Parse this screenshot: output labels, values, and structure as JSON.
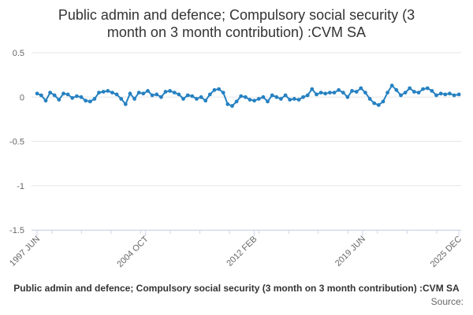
{
  "chart_data": {
    "type": "line",
    "title_lines": [
      "Public admin and defence; Compulsory social security (3",
      "month on 3 month contribution) :CVM SA"
    ],
    "xlabel": "",
    "ylabel": "",
    "x_start": "1997 JUN",
    "x_end": "2025 DEC",
    "x_ticks": [
      "1997 JUN",
      "2004 OCT",
      "2012 FEB",
      "2019 JUN",
      "2025 DEC"
    ],
    "y_ticks": [
      "0.5",
      "0",
      "-0.5",
      "-1",
      "-1.5"
    ],
    "ylim": [
      -1.5,
      0.5
    ],
    "grid": true,
    "legend": "none",
    "series": [
      {
        "name": "Public admin and defence; Compulsory social security (3 month on 3 month contribution) :CVM SA",
        "color": "#2681c2",
        "x_years": [
          1997.42,
          1997.7,
          1998.0,
          1998.3,
          1998.6,
          1998.9,
          1999.2,
          1999.5,
          1999.8,
          2000.1,
          2000.4,
          2000.7,
          2001.0,
          2001.3,
          2001.6,
          2001.9,
          2002.2,
          2002.5,
          2002.8,
          2003.1,
          2003.4,
          2003.7,
          2004.0,
          2004.3,
          2004.6,
          2004.9,
          2005.2,
          2005.5,
          2005.8,
          2006.1,
          2006.4,
          2006.7,
          2007.0,
          2007.3,
          2007.6,
          2007.9,
          2008.2,
          2008.5,
          2008.8,
          2009.1,
          2009.4,
          2009.7,
          2010.0,
          2010.3,
          2010.6,
          2010.9,
          2011.2,
          2011.5,
          2011.8,
          2012.1,
          2012.4,
          2012.7,
          2013.0,
          2013.3,
          2013.6,
          2013.9,
          2014.2,
          2014.5,
          2014.8,
          2015.1,
          2015.4,
          2015.7,
          2016.0,
          2016.3,
          2016.6,
          2016.9,
          2017.2,
          2017.5,
          2017.8,
          2018.1,
          2018.4,
          2018.7,
          2019.0,
          2019.3,
          2019.6,
          2019.9,
          2020.2,
          2020.5,
          2020.8,
          2021.1,
          2021.4,
          2021.7,
          2022.0,
          2022.3,
          2022.6,
          2022.9,
          2023.2,
          2023.5,
          2023.8,
          2024.1,
          2024.4,
          2024.7,
          2025.0,
          2025.3,
          2025.6,
          2025.92
        ],
        "values": [
          0.04,
          0.02,
          -0.04,
          0.05,
          0.02,
          -0.03,
          0.04,
          0.03,
          -0.01,
          0.01,
          0.0,
          -0.04,
          -0.05,
          -0.02,
          0.05,
          0.06,
          0.07,
          0.05,
          0.03,
          -0.02,
          -0.08,
          0.04,
          -0.02,
          0.05,
          0.04,
          0.07,
          0.02,
          0.03,
          0.0,
          0.06,
          0.07,
          0.05,
          0.03,
          -0.02,
          0.02,
          0.01,
          -0.02,
          0.0,
          -0.04,
          0.03,
          0.08,
          0.09,
          0.05,
          -0.08,
          -0.1,
          -0.05,
          0.01,
          0.0,
          -0.03,
          -0.04,
          -0.02,
          0.0,
          -0.05,
          0.02,
          0.0,
          -0.02,
          0.02,
          -0.03,
          -0.02,
          -0.03,
          0.0,
          0.02,
          0.09,
          0.03,
          0.05,
          0.04,
          0.05,
          0.05,
          0.08,
          0.05,
          0.0,
          0.07,
          0.06,
          0.1,
          0.05,
          -0.02,
          -0.07,
          -0.09,
          -0.05,
          0.05,
          0.13,
          0.08,
          0.02,
          0.05,
          0.1,
          0.06,
          0.05,
          0.09,
          0.1,
          0.07,
          0.02,
          0.04,
          0.03,
          0.04,
          0.02,
          0.03
        ]
      }
    ]
  },
  "footer": {
    "series_name": "Public admin and defence; Compulsory social security (3 month on 3 month contribution) :CVM SA",
    "source_label": "Source:"
  }
}
